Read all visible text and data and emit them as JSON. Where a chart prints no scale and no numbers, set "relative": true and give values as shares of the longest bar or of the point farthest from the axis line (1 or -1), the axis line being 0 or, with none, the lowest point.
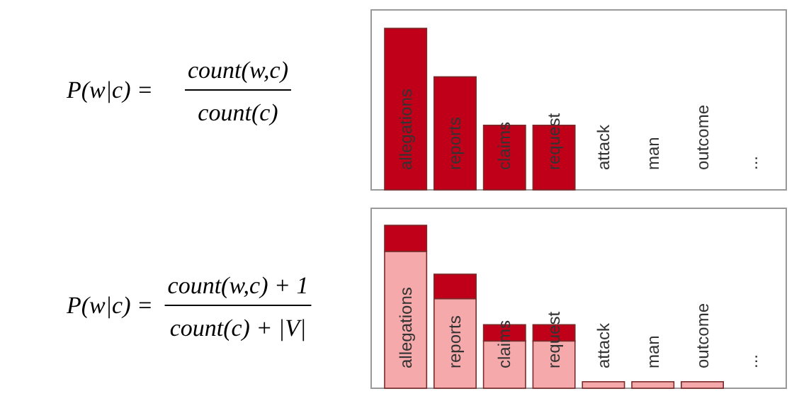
{
  "chart_data": [
    {
      "type": "bar",
      "relative": true,
      "annotations": [
        "P(w|c) =",
        "count(w,c)",
        "count(c)"
      ],
      "categories": [
        "allegations",
        "reports",
        "claims",
        "request",
        "attack",
        "man",
        "outcome",
        "..."
      ],
      "series": [
        {
          "color": "#c00018",
          "values": [
            1,
            0.7,
            0.4,
            0.4,
            0,
            0,
            0,
            null
          ]
        }
      ]
    },
    {
      "type": "bar",
      "relative": true,
      "stacked": true,
      "annotations": [
        "P(w|c) =",
        "count(w,c) + 1",
        "count(c) + |V|"
      ],
      "categories": [
        "allegations",
        "reports",
        "claims",
        "request",
        "attack",
        "man",
        "outcome",
        "..."
      ],
      "series": [
        {
          "color": "#f6a9ab",
          "values": [
            0.84,
            0.55,
            0.29,
            0.29,
            0.04,
            0.04,
            0.04,
            null
          ]
        },
        {
          "color": "#c00018",
          "values": [
            0.16,
            0.15,
            0.1,
            0.1,
            0,
            0,
            0,
            null
          ]
        }
      ]
    }
  ]
}
